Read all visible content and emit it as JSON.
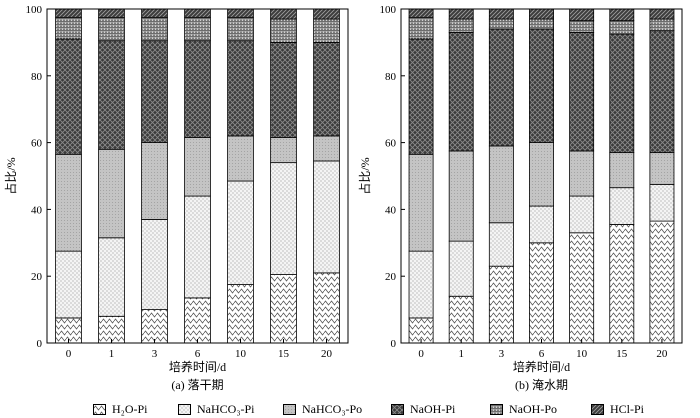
{
  "chart_data": [
    {
      "type": "bar",
      "stacked": true,
      "caption": "(a) 落干期",
      "xlabel": "培养时间/d",
      "ylabel": "占比/%",
      "categories": [
        "0",
        "1",
        "3",
        "6",
        "10",
        "15",
        "20"
      ],
      "ylim": [
        0,
        100
      ],
      "yticks": [
        "0",
        "20",
        "40",
        "60",
        "80",
        "100"
      ],
      "series": [
        {
          "name": "H2O-Pi",
          "values": [
            7.5,
            8.0,
            10.0,
            13.5,
            17.5,
            20.5,
            21.0
          ]
        },
        {
          "name": "NaHCO3-Pi",
          "values": [
            20.0,
            23.5,
            27.0,
            30.5,
            31.0,
            33.5,
            33.5
          ]
        },
        {
          "name": "NaHCO3-Po",
          "values": [
            29.0,
            26.5,
            23.0,
            17.5,
            13.5,
            7.5,
            7.5
          ]
        },
        {
          "name": "NaOH-Pi",
          "values": [
            34.5,
            32.5,
            30.5,
            29.0,
            28.5,
            28.5,
            28.0
          ]
        },
        {
          "name": "NaOH-Po",
          "values": [
            6.5,
            7.0,
            7.0,
            7.0,
            7.0,
            7.0,
            7.0
          ]
        },
        {
          "name": "HCl-Pi",
          "values": [
            2.5,
            2.5,
            2.5,
            2.5,
            2.5,
            3.0,
            3.0
          ]
        }
      ]
    },
    {
      "type": "bar",
      "stacked": true,
      "caption": "(b) 淹水期",
      "xlabel": "培养时间/d",
      "ylabel": "占比/%",
      "categories": [
        "0",
        "1",
        "3",
        "6",
        "10",
        "15",
        "20"
      ],
      "ylim": [
        0,
        100
      ],
      "yticks": [
        "0",
        "20",
        "40",
        "60",
        "80",
        "100"
      ],
      "series": [
        {
          "name": "H2O-Pi",
          "values": [
            7.5,
            14.0,
            23.0,
            30.0,
            33.0,
            35.5,
            36.5
          ]
        },
        {
          "name": "NaHCO3-Pi",
          "values": [
            20.0,
            16.5,
            13.0,
            11.0,
            11.0,
            11.0,
            11.0
          ]
        },
        {
          "name": "NaHCO3-Po",
          "values": [
            29.0,
            27.0,
            23.0,
            19.0,
            13.5,
            10.5,
            9.5
          ]
        },
        {
          "name": "NaOH-Pi",
          "values": [
            34.5,
            35.5,
            35.0,
            34.0,
            35.5,
            35.5,
            36.5
          ]
        },
        {
          "name": "NaOH-Po",
          "values": [
            6.5,
            4.0,
            3.0,
            3.0,
            3.5,
            4.0,
            3.5
          ]
        },
        {
          "name": "HCl-Pi",
          "values": [
            2.5,
            3.0,
            3.0,
            3.0,
            3.5,
            3.5,
            3.0
          ]
        }
      ]
    }
  ],
  "legend": [
    {
      "key": "h2o",
      "label": "H₂O-Pi"
    },
    {
      "key": "hco3pi",
      "label": "NaHCO₃-Pi"
    },
    {
      "key": "hco3po",
      "label": "NaHCO₃-Po"
    },
    {
      "key": "naohpi",
      "label": "NaOH-Pi"
    },
    {
      "key": "naohpo",
      "label": "NaOH-Po"
    },
    {
      "key": "hcl",
      "label": "HCl-Pi"
    }
  ]
}
